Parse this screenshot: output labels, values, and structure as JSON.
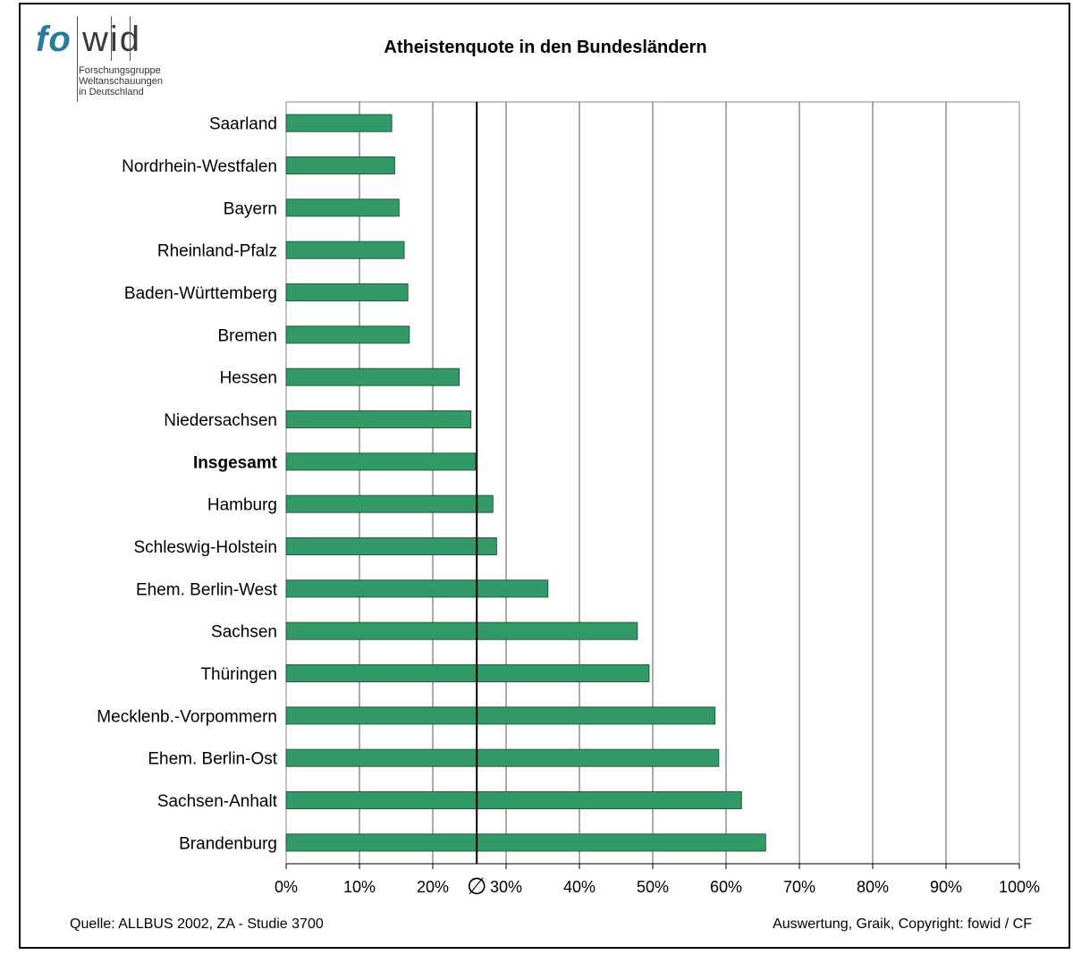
{
  "logo": {
    "brand_left": "fo",
    "brand_right": "wid",
    "subtitle_lines": [
      "Forschungsgruppe",
      "Weltanschauungen",
      "in Deutschland"
    ]
  },
  "colors": {
    "bar_fill": "#339966",
    "bar_stroke": "#1f5a3c",
    "grid": "#555555",
    "average_line": "#000000"
  },
  "footer": {
    "source": "Quelle: ALLBUS 2002, ZA - Studie 3700",
    "credit": "Auswertung, Graik, Copyright: fowid / CF"
  },
  "chart_data": {
    "type": "bar",
    "orientation": "horizontal",
    "title": "Atheistenquote in den Bundesländern",
    "categories": [
      "Saarland",
      "Nordrhein-Westfalen",
      "Bayern",
      "Rheinland-Pfalz",
      "Baden-Württemberg",
      "Bremen",
      "Hessen",
      "Niedersachsen",
      "Insgesamt",
      "Hamburg",
      "Schleswig-Holstein",
      "Ehem. Berlin-West",
      "Sachsen",
      "Thüringen",
      "Mecklenb.-Vorpommern",
      "Ehem. Berlin-Ost",
      "Sachsen-Anhalt",
      "Brandenburg"
    ],
    "values": [
      14.4,
      14.8,
      15.4,
      16.1,
      16.6,
      16.8,
      23.6,
      25.2,
      25.8,
      28.2,
      28.7,
      35.7,
      47.9,
      49.5,
      58.5,
      59.0,
      62.1,
      65.4
    ],
    "bold_categories": [
      "Insgesamt"
    ],
    "x_ticks": [
      "0%",
      "10%",
      "20%",
      "30%",
      "40%",
      "50%",
      "60%",
      "70%",
      "80%",
      "90%",
      "100%"
    ],
    "xlim": [
      0,
      100
    ],
    "average": 26,
    "average_symbol": "∅",
    "grid": true,
    "legend": "none"
  }
}
